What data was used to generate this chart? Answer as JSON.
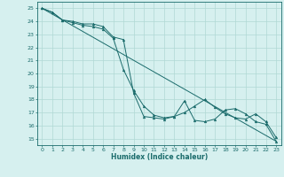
{
  "xlabel": "Humidex (Indice chaleur)",
  "ylabel": "",
  "xlim": [
    -0.5,
    23.5
  ],
  "ylim": [
    14.5,
    25.5
  ],
  "xticks": [
    0,
    1,
    2,
    3,
    4,
    5,
    6,
    7,
    8,
    9,
    10,
    11,
    12,
    13,
    14,
    15,
    16,
    17,
    18,
    19,
    20,
    21,
    22,
    23
  ],
  "yticks": [
    15,
    16,
    17,
    18,
    19,
    20,
    21,
    22,
    23,
    24,
    25
  ],
  "bg_color": "#d6f0ef",
  "grid_color": "#b0d8d4",
  "line_color": "#1a6b6b",
  "ref_line_x": [
    0,
    23
  ],
  "ref_line_y": [
    25.0,
    14.8
  ],
  "line1_x": [
    0,
    1,
    2,
    3,
    4,
    5,
    6,
    7,
    8,
    9,
    10,
    11,
    12,
    13,
    14,
    15,
    16,
    17,
    18,
    19,
    20,
    21,
    22,
    23
  ],
  "line1_y": [
    25.0,
    24.7,
    24.1,
    23.9,
    23.7,
    23.6,
    23.4,
    22.7,
    20.3,
    18.7,
    17.5,
    16.8,
    16.6,
    16.7,
    17.0,
    17.5,
    18.0,
    17.4,
    16.9,
    16.6,
    16.5,
    16.9,
    16.3,
    15.1
  ],
  "line2_x": [
    0,
    1,
    2,
    3,
    4,
    5,
    6,
    7,
    8,
    9,
    10,
    11,
    12,
    13,
    14,
    15,
    16,
    17,
    18,
    19,
    20,
    21,
    22,
    23
  ],
  "line2_y": [
    25.0,
    24.7,
    24.1,
    24.0,
    23.8,
    23.8,
    23.6,
    22.8,
    22.6,
    18.5,
    16.7,
    16.6,
    16.5,
    16.7,
    17.9,
    16.4,
    16.3,
    16.5,
    17.2,
    17.3,
    16.9,
    16.3,
    16.1,
    14.8
  ]
}
